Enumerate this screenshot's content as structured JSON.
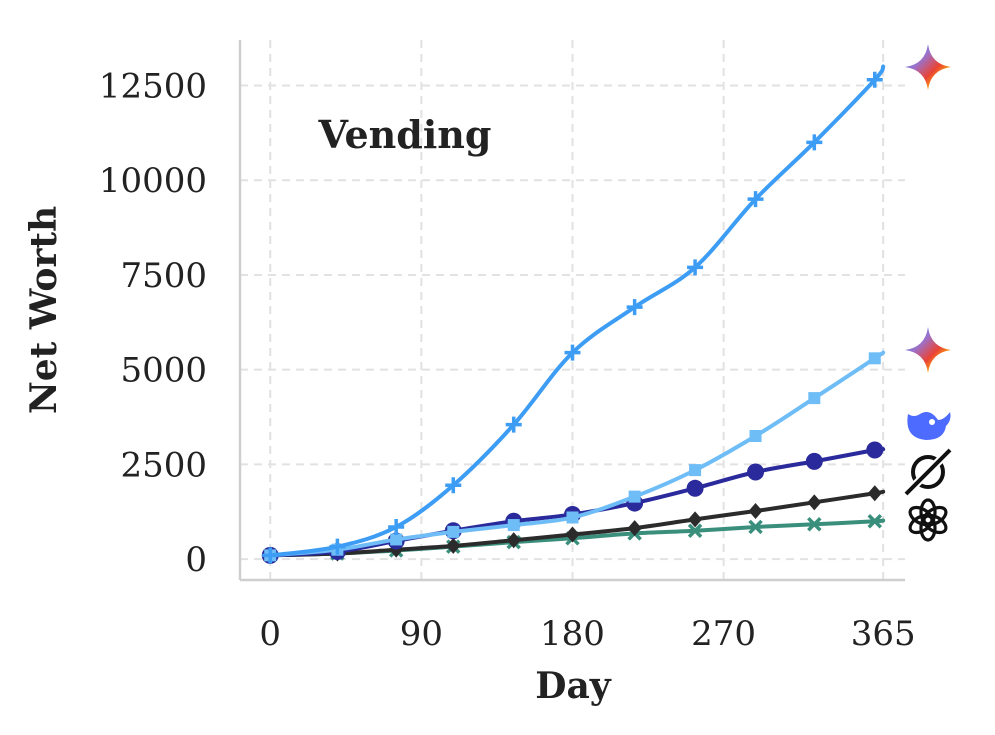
{
  "chart_data": {
    "type": "line",
    "title": "Vending",
    "xlabel": "Day",
    "ylabel": "Net Worth",
    "xlim": [
      -18,
      378
    ],
    "ylim": [
      -550,
      13700
    ],
    "x_ticks": [
      0,
      90,
      180,
      270,
      365
    ],
    "x_tick_labels": [
      "0",
      "90",
      "180",
      "270",
      "365"
    ],
    "y_ticks": [
      0,
      2500,
      5000,
      7500,
      10000,
      12500
    ],
    "y_tick_labels": [
      "0",
      "2500",
      "5000",
      "7500",
      "10000",
      "12500"
    ],
    "grid": true,
    "legend": "icons at right end of each line",
    "series": [
      {
        "color": "#3d9df5",
        "marker": "plus",
        "icon": "gemini-sparkle-icon",
        "x": [
          0,
          40,
          75,
          109,
          145,
          180,
          217,
          253,
          289,
          324,
          360,
          365
        ],
        "y": [
          100,
          330,
          850,
          1950,
          3550,
          5450,
          6650,
          7700,
          9500,
          11000,
          12650,
          13000
        ]
      },
      {
        "color": "#6fbdf7",
        "marker": "square",
        "icon": "gemini-sparkle-icon",
        "x": [
          0,
          40,
          75,
          109,
          145,
          180,
          217,
          253,
          289,
          324,
          360,
          365
        ],
        "y": [
          100,
          250,
          520,
          720,
          900,
          1100,
          1650,
          2350,
          3250,
          4250,
          5300,
          5450
        ]
      },
      {
        "color": "#2a2a9c",
        "marker": "circle",
        "icon": "deepseek-whale-icon",
        "x": [
          0,
          40,
          75,
          109,
          145,
          180,
          217,
          253,
          289,
          324,
          360,
          365
        ],
        "y": [
          100,
          200,
          480,
          750,
          1000,
          1180,
          1480,
          1870,
          2300,
          2580,
          2880,
          2900
        ]
      },
      {
        "color": "#2b2b2b",
        "marker": "diamond",
        "icon": "xai-grok-icon",
        "x": [
          0,
          40,
          75,
          109,
          145,
          180,
          217,
          253,
          289,
          324,
          360,
          365
        ],
        "y": [
          100,
          150,
          250,
          350,
          500,
          650,
          820,
          1050,
          1270,
          1500,
          1740,
          1780
        ]
      },
      {
        "color": "#3a8f7c",
        "marker": "x",
        "icon": "openai-logo-icon",
        "x": [
          0,
          40,
          75,
          109,
          145,
          180,
          217,
          253,
          289,
          324,
          360,
          365
        ],
        "y": [
          100,
          150,
          230,
          330,
          450,
          550,
          680,
          750,
          850,
          920,
          1000,
          1020
        ]
      }
    ]
  }
}
